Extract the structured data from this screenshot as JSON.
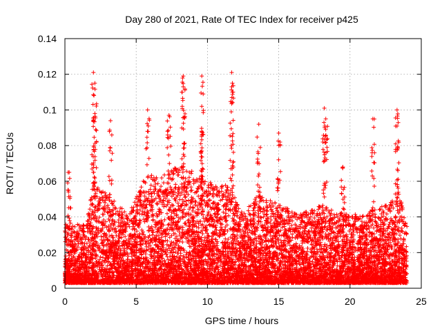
{
  "chart_data": {
    "type": "scatter",
    "title": "Day 280 of 2021, Rate Of TEC Index for receiver p425",
    "xlabel": "GPS time / hours",
    "ylabel": "ROTI / TECUs",
    "xlim": [
      0,
      25
    ],
    "ylim": [
      0,
      0.14
    ],
    "xticks": [
      "0",
      "5",
      "10",
      "15",
      "20",
      "25"
    ],
    "yticks": [
      "0",
      "0.02",
      "0.04",
      "0.06",
      "0.08",
      "0.1",
      "0.12",
      "0.14"
    ],
    "grid": true,
    "marker": "+",
    "color": "#ff0000",
    "x_data_range": [
      0,
      24
    ],
    "spike_points": [
      {
        "x": 0.3,
        "y": 0.065
      },
      {
        "x": 2.0,
        "y": 0.121
      },
      {
        "x": 2.1,
        "y": 0.115
      },
      {
        "x": 2.1,
        "y": 0.098
      },
      {
        "x": 3.2,
        "y": 0.094
      },
      {
        "x": 5.8,
        "y": 0.1
      },
      {
        "x": 7.3,
        "y": 0.097
      },
      {
        "x": 8.3,
        "y": 0.119
      },
      {
        "x": 8.3,
        "y": 0.113
      },
      {
        "x": 9.6,
        "y": 0.119
      },
      {
        "x": 9.6,
        "y": 0.102
      },
      {
        "x": 11.7,
        "y": 0.121
      },
      {
        "x": 11.7,
        "y": 0.113
      },
      {
        "x": 13.6,
        "y": 0.092
      },
      {
        "x": 15.0,
        "y": 0.087
      },
      {
        "x": 18.2,
        "y": 0.101
      },
      {
        "x": 18.3,
        "y": 0.095
      },
      {
        "x": 19.5,
        "y": 0.068
      },
      {
        "x": 21.6,
        "y": 0.095
      },
      {
        "x": 23.3,
        "y": 0.1
      },
      {
        "x": 23.3,
        "y": 0.091
      }
    ],
    "envelope": [
      {
        "x": 0,
        "base_max": 0.03
      },
      {
        "x": 1.5,
        "base_max": 0.03
      },
      {
        "x": 2.0,
        "base_max": 0.05
      },
      {
        "x": 3.0,
        "base_max": 0.045
      },
      {
        "x": 4.5,
        "base_max": 0.035
      },
      {
        "x": 5.5,
        "base_max": 0.055
      },
      {
        "x": 6.5,
        "base_max": 0.055
      },
      {
        "x": 8.0,
        "base_max": 0.06
      },
      {
        "x": 9.5,
        "base_max": 0.055
      },
      {
        "x": 10.5,
        "base_max": 0.05
      },
      {
        "x": 11.5,
        "base_max": 0.05
      },
      {
        "x": 12.5,
        "base_max": 0.035
      },
      {
        "x": 13.5,
        "base_max": 0.045
      },
      {
        "x": 15.0,
        "base_max": 0.04
      },
      {
        "x": 16.5,
        "base_max": 0.035
      },
      {
        "x": 18.0,
        "base_max": 0.04
      },
      {
        "x": 19.5,
        "base_max": 0.035
      },
      {
        "x": 21.0,
        "base_max": 0.035
      },
      {
        "x": 22.5,
        "base_max": 0.04
      },
      {
        "x": 23.5,
        "base_max": 0.045
      },
      {
        "x": 24.0,
        "base_max": 0.03
      }
    ]
  }
}
